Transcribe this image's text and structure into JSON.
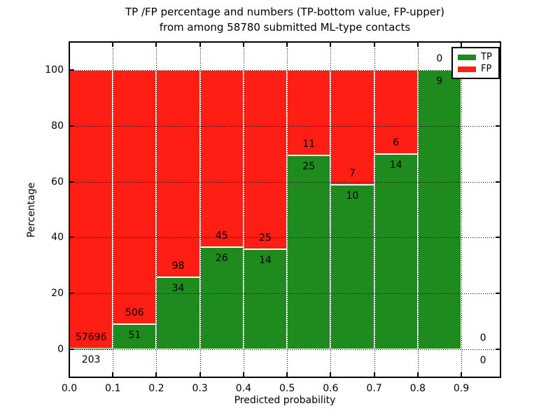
{
  "chart_data": {
    "type": "bar",
    "variant": "stacked-percentage",
    "title_line1": "TP /FP percentage and numbers (TP-bottom value, FP-upper)",
    "title_line2": "from among 58780 submitted ML-type contacts",
    "xlabel": "Predicted probability",
    "ylabel": "Percentage",
    "total_contacts": 58780,
    "xlim": [
      0,
      0.99
    ],
    "ylim": [
      -10,
      110
    ],
    "x_tick_values": [
      0.0,
      0.1,
      0.2,
      0.3,
      0.4,
      0.5,
      0.6,
      0.7,
      0.8,
      0.9
    ],
    "x_tick_labels": [
      "0.0",
      "0.1",
      "0.2",
      "0.3",
      "0.4",
      "0.5",
      "0.6",
      "0.7",
      "0.8",
      "0.9"
    ],
    "y_tick_values": [
      0,
      20,
      40,
      60,
      80,
      100
    ],
    "y_tick_labels": [
      "0",
      "20",
      "40",
      "60",
      "80",
      "100"
    ],
    "grid": "dotted-both-axes",
    "annotation_rule": "FP count printed above TP/FP boundary, TP count printed below",
    "bins": [
      {
        "x_range": [
          0.0,
          0.1
        ],
        "tp_count": 203,
        "fp_count": 57696,
        "tp_pct": 0.35
      },
      {
        "x_range": [
          0.1,
          0.2
        ],
        "tp_count": 51,
        "fp_count": 506,
        "tp_pct": 9.16
      },
      {
        "x_range": [
          0.2,
          0.3
        ],
        "tp_count": 34,
        "fp_count": 98,
        "tp_pct": 25.76
      },
      {
        "x_range": [
          0.3,
          0.4
        ],
        "tp_count": 26,
        "fp_count": 45,
        "tp_pct": 36.62
      },
      {
        "x_range": [
          0.4,
          0.5
        ],
        "tp_count": 14,
        "fp_count": 25,
        "tp_pct": 35.9
      },
      {
        "x_range": [
          0.5,
          0.6
        ],
        "tp_count": 25,
        "fp_count": 11,
        "tp_pct": 69.44
      },
      {
        "x_range": [
          0.6,
          0.7
        ],
        "tp_count": 10,
        "fp_count": 7,
        "tp_pct": 58.82
      },
      {
        "x_range": [
          0.7,
          0.8
        ],
        "tp_count": 14,
        "fp_count": 6,
        "tp_pct": 70.0
      },
      {
        "x_range": [
          0.8,
          0.9
        ],
        "tp_count": 9,
        "fp_count": 0,
        "tp_pct": 100.0
      },
      {
        "x_range": [
          0.9,
          1.0
        ],
        "tp_count": 0,
        "fp_count": 0,
        "tp_pct": null
      }
    ],
    "legend": {
      "position": "upper right",
      "entries": [
        {
          "label": "TP",
          "color": "#1f8b1f"
        },
        {
          "label": "FP",
          "color": "#ff1e14"
        }
      ]
    },
    "colors": {
      "tp": "#1f8b1f",
      "fp": "#ff1e14",
      "bar_edge": "#ffffff",
      "grid": "#000000",
      "frame": "#000000",
      "background": "#ffffff"
    }
  }
}
